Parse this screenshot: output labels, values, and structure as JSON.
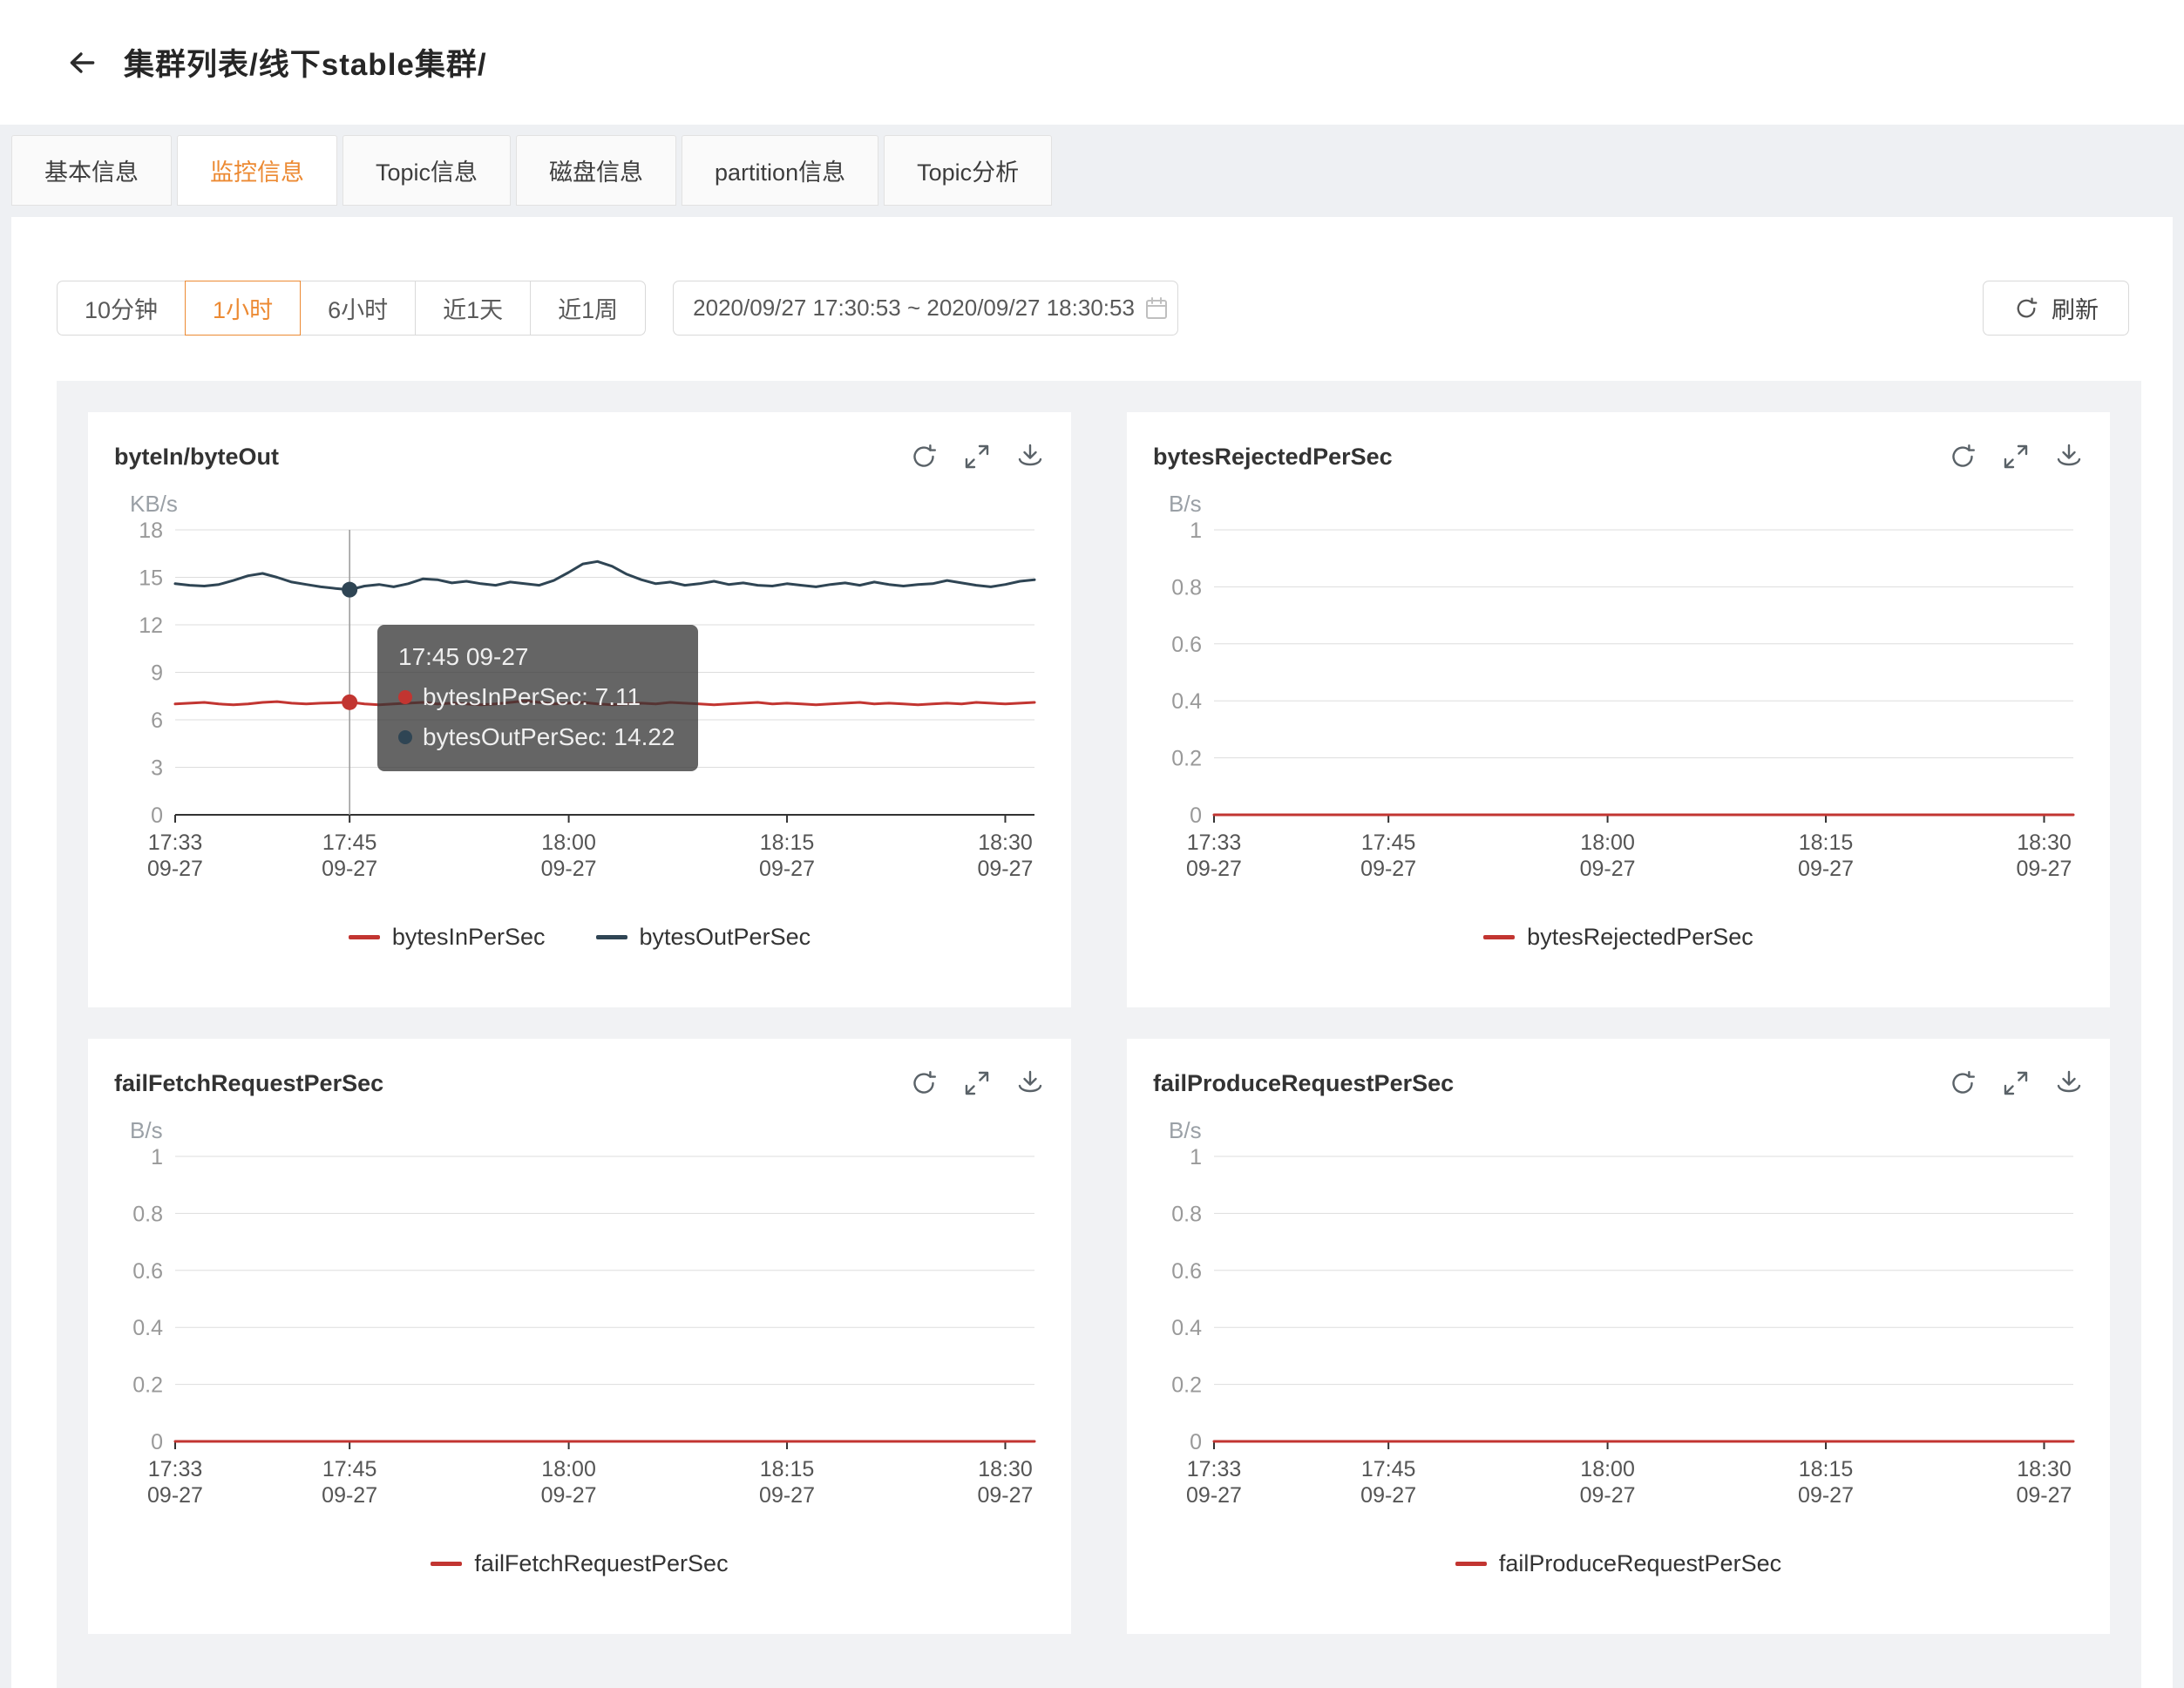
{
  "colors": {
    "accent": "#ec8a33",
    "series_red": "#c23531",
    "series_navy": "#2f4554"
  },
  "header": {
    "title": "集群列表/线下stable集群/"
  },
  "tabs": [
    {
      "label": "基本信息",
      "active": false
    },
    {
      "label": "监控信息",
      "active": true
    },
    {
      "label": "Topic信息",
      "active": false
    },
    {
      "label": "磁盘信息",
      "active": false
    },
    {
      "label": "partition信息",
      "active": false
    },
    {
      "label": "Topic分析",
      "active": false
    }
  ],
  "controls": {
    "ranges": [
      {
        "label": "10分钟",
        "active": false
      },
      {
        "label": "1小时",
        "active": true
      },
      {
        "label": "6小时",
        "active": false
      },
      {
        "label": "近1天",
        "active": false
      },
      {
        "label": "近1周",
        "active": false
      }
    ],
    "date_range": "2020/09/27 17:30:53 ~ 2020/09/27 18:30:53",
    "refresh_label": "刷新"
  },
  "chart_data": [
    {
      "type": "line",
      "title": "byteIn/byteOut",
      "unit": "KB/s",
      "ylim": [
        0,
        18
      ],
      "yticks": [
        0,
        3,
        6,
        9,
        12,
        15,
        18
      ],
      "grid": true,
      "legend_position": "bottom",
      "xticks": [
        {
          "time": "17:33",
          "date": "09-27",
          "frac": 0
        },
        {
          "time": "17:45",
          "date": "09-27",
          "frac": 0.203
        },
        {
          "time": "18:00",
          "date": "09-27",
          "frac": 0.458
        },
        {
          "time": "18:15",
          "date": "09-27",
          "frac": 0.712
        },
        {
          "time": "18:30",
          "date": "09-27",
          "frac": 0.966
        }
      ],
      "series": [
        {
          "name": "bytesInPerSec",
          "color": "#c23531",
          "values": [
            7.0,
            7.05,
            7.1,
            7.0,
            6.95,
            7.0,
            7.1,
            7.15,
            7.05,
            7.0,
            7.05,
            7.08,
            7.11,
            7.0,
            6.95,
            7.0,
            7.05,
            7.1,
            7.0,
            7.05,
            7.0,
            6.95,
            7.0,
            7.1,
            7.2,
            7.1,
            7.0,
            7.05,
            7.1,
            7.0,
            6.95,
            7.0,
            7.05,
            7.0,
            7.1,
            7.05,
            7.0,
            6.95,
            7.0,
            7.05,
            7.1,
            7.0,
            7.05,
            7.0,
            6.95,
            7.0,
            7.05,
            7.1,
            7.0,
            7.05,
            7.0,
            6.95,
            7.0,
            7.05,
            7.0,
            7.1,
            7.05,
            7.0,
            7.05,
            7.1
          ]
        },
        {
          "name": "bytesOutPerSec",
          "color": "#2f4554",
          "values": [
            14.6,
            14.5,
            14.45,
            14.55,
            14.8,
            15.1,
            15.25,
            15.0,
            14.7,
            14.55,
            14.4,
            14.3,
            14.22,
            14.45,
            14.55,
            14.4,
            14.6,
            14.9,
            14.85,
            14.65,
            14.75,
            14.6,
            14.5,
            14.7,
            14.6,
            14.5,
            14.8,
            15.3,
            15.85,
            16.0,
            15.7,
            15.2,
            14.85,
            14.6,
            14.7,
            14.5,
            14.6,
            14.75,
            14.55,
            14.65,
            14.5,
            14.45,
            14.6,
            14.5,
            14.4,
            14.55,
            14.65,
            14.5,
            14.7,
            14.55,
            14.45,
            14.55,
            14.6,
            14.8,
            14.65,
            14.5,
            14.4,
            14.55,
            14.75,
            14.85
          ]
        }
      ],
      "tooltip": {
        "title": "17:45 09-27",
        "frac": 0.203,
        "items": [
          {
            "color": "#c23531",
            "text": "bytesInPerSec: 7.11"
          },
          {
            "color": "#2f4554",
            "text": "bytesOutPerSec: 14.22"
          }
        ]
      }
    },
    {
      "type": "line",
      "title": "bytesRejectedPerSec",
      "unit": "B/s",
      "ylim": [
        0,
        1
      ],
      "yticks": [
        0,
        0.2,
        0.4,
        0.6,
        0.8,
        1
      ],
      "grid": true,
      "legend_position": "bottom",
      "xticks": [
        {
          "time": "17:33",
          "date": "09-27",
          "frac": 0
        },
        {
          "time": "17:45",
          "date": "09-27",
          "frac": 0.203
        },
        {
          "time": "18:00",
          "date": "09-27",
          "frac": 0.458
        },
        {
          "time": "18:15",
          "date": "09-27",
          "frac": 0.712
        },
        {
          "time": "18:30",
          "date": "09-27",
          "frac": 0.966
        }
      ],
      "series": [
        {
          "name": "bytesRejectedPerSec",
          "color": "#c23531",
          "values": [
            0,
            0
          ]
        }
      ]
    },
    {
      "type": "line",
      "title": "failFetchRequestPerSec",
      "unit": "B/s",
      "ylim": [
        0,
        1
      ],
      "yticks": [
        0,
        0.2,
        0.4,
        0.6,
        0.8,
        1
      ],
      "grid": true,
      "legend_position": "bottom",
      "xticks": [
        {
          "time": "17:33",
          "date": "09-27",
          "frac": 0
        },
        {
          "time": "17:45",
          "date": "09-27",
          "frac": 0.203
        },
        {
          "time": "18:00",
          "date": "09-27",
          "frac": 0.458
        },
        {
          "time": "18:15",
          "date": "09-27",
          "frac": 0.712
        },
        {
          "time": "18:30",
          "date": "09-27",
          "frac": 0.966
        }
      ],
      "series": [
        {
          "name": "failFetchRequestPerSec",
          "color": "#c23531",
          "values": [
            0,
            0
          ]
        }
      ]
    },
    {
      "type": "line",
      "title": "failProduceRequestPerSec",
      "unit": "B/s",
      "ylim": [
        0,
        1
      ],
      "yticks": [
        0,
        0.2,
        0.4,
        0.6,
        0.8,
        1
      ],
      "grid": true,
      "legend_position": "bottom",
      "xticks": [
        {
          "time": "17:33",
          "date": "09-27",
          "frac": 0
        },
        {
          "time": "17:45",
          "date": "09-27",
          "frac": 0.203
        },
        {
          "time": "18:00",
          "date": "09-27",
          "frac": 0.458
        },
        {
          "time": "18:15",
          "date": "09-27",
          "frac": 0.712
        },
        {
          "time": "18:30",
          "date": "09-27",
          "frac": 0.966
        }
      ],
      "series": [
        {
          "name": "failProduceRequestPerSec",
          "color": "#c23531",
          "values": [
            0,
            0
          ]
        }
      ]
    }
  ]
}
